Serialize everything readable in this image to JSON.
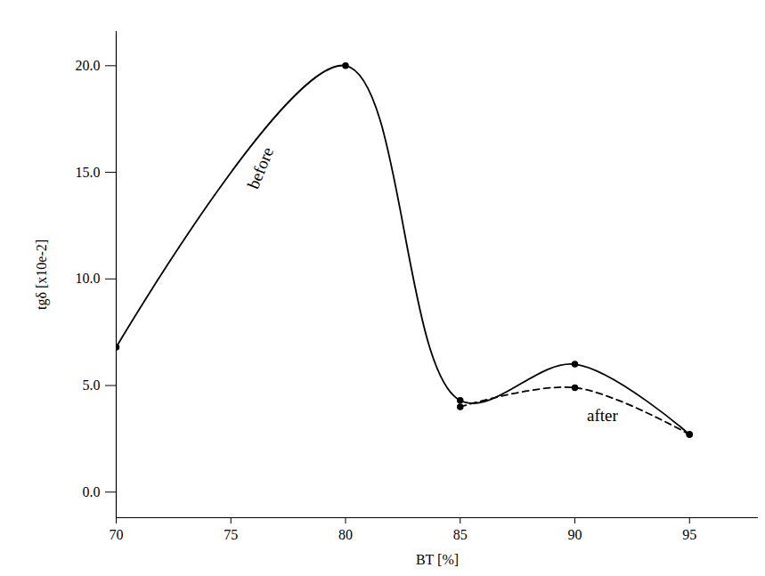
{
  "chart_data": {
    "type": "line",
    "x_label": "BT [%]",
    "y_label": "tgδ [x10e-2]",
    "x": [
      70,
      80,
      85,
      90,
      95
    ],
    "series": [
      {
        "name": "before",
        "color": "#000000",
        "line_style": "solid",
        "marker": "circle",
        "values": [
          6.8,
          20.0,
          4.3,
          6.0,
          2.7
        ]
      },
      {
        "name": "after",
        "color": "#000000",
        "line_style": "dashed",
        "marker": "circle",
        "values": [
          null,
          null,
          4.0,
          4.9,
          2.7
        ]
      }
    ],
    "xlim": [
      70,
      98
    ],
    "xticks": [
      70,
      75,
      80,
      85,
      90,
      95
    ],
    "ylim": [
      -1.2,
      21.6
    ],
    "yticks": [
      {
        "value": 0,
        "label": "0.0"
      },
      {
        "value": 5,
        "label": "5.0"
      },
      {
        "value": 10,
        "label": "10.0"
      },
      {
        "value": 15,
        "label": "15.0"
      },
      {
        "value": 20,
        "label": "20.0"
      }
    ],
    "annotations": [
      {
        "text": "before",
        "x": 76.3,
        "y": 15.2
      },
      {
        "text": "after",
        "x": 91.2,
        "y": 3.6
      }
    ],
    "grid": false
  }
}
